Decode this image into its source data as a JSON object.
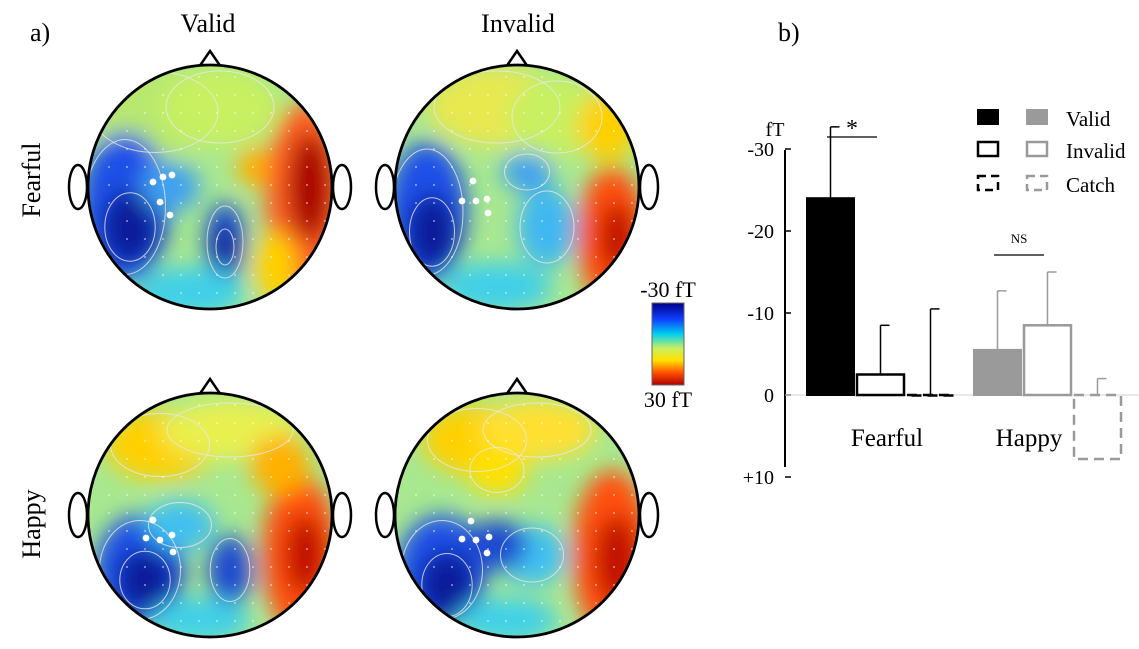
{
  "panel_a": {
    "label": "a)",
    "columns": [
      "Valid",
      "Invalid"
    ],
    "rows": [
      "Fearful",
      "Happy"
    ],
    "colorbar": {
      "top": "-30 fT",
      "bottom": "30 fT"
    }
  },
  "panel_b": {
    "label": "b)"
  },
  "chart_data": {
    "type": "bar",
    "unit": "fT",
    "ylabel": "fT",
    "ylim": [
      10,
      -35
    ],
    "inverted_y": true,
    "yticks": [
      {
        "value": -30,
        "label": "-30"
      },
      {
        "value": -20,
        "label": "-20"
      },
      {
        "value": -10,
        "label": "-10"
      },
      {
        "value": 0,
        "label": "0"
      },
      {
        "value": 10,
        "label": "+10"
      }
    ],
    "groups": [
      "Fearful",
      "Happy"
    ],
    "series": [
      {
        "name": "Valid",
        "style": "filled",
        "values": [
          -24,
          -5.5
        ],
        "error": [
          8.7,
          7.2
        ]
      },
      {
        "name": "Invalid",
        "style": "outline",
        "values": [
          -2.5,
          -8.5
        ],
        "error": [
          6,
          6.5
        ]
      },
      {
        "name": "Catch",
        "style": "dashed",
        "values": [
          0,
          7.8
        ],
        "error": [
          10.5,
          9.8
        ]
      }
    ],
    "group_colors": {
      "Fearful": "#000000",
      "Happy": "#9a9a9a"
    },
    "significance": [
      {
        "group": "Fearful",
        "label": "*"
      },
      {
        "group": "Happy",
        "label": "NS"
      }
    ],
    "legend_position": "top-right"
  }
}
